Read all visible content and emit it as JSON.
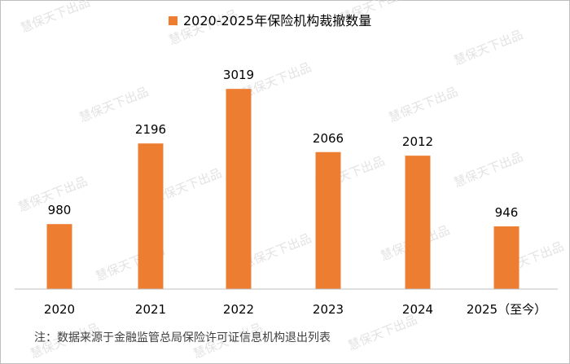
{
  "colors": {
    "bar": "#ED7D31",
    "axis": "#BFBFBF",
    "text": "#000000",
    "note": "#404040",
    "watermark": "#E3E3E3"
  },
  "watermark_text": "慧保天下出品",
  "note": "注：数据来源于金融监管总局保险许可证信息机构退出列表",
  "chart_data": {
    "type": "bar",
    "title": "2020-2025年保险机构裁撤数量",
    "categories": [
      "2020",
      "2021",
      "2022",
      "2023",
      "2024",
      "2025（至今）"
    ],
    "series": [
      {
        "name": "2020-2025年保险机构裁撤数量",
        "values": [
          980,
          2196,
          3019,
          2066,
          2012,
          946
        ]
      }
    ],
    "ylim": [
      0,
      3500
    ],
    "grid": false,
    "legend": "top",
    "data_labels": true,
    "xlabel": "",
    "ylabel": ""
  }
}
